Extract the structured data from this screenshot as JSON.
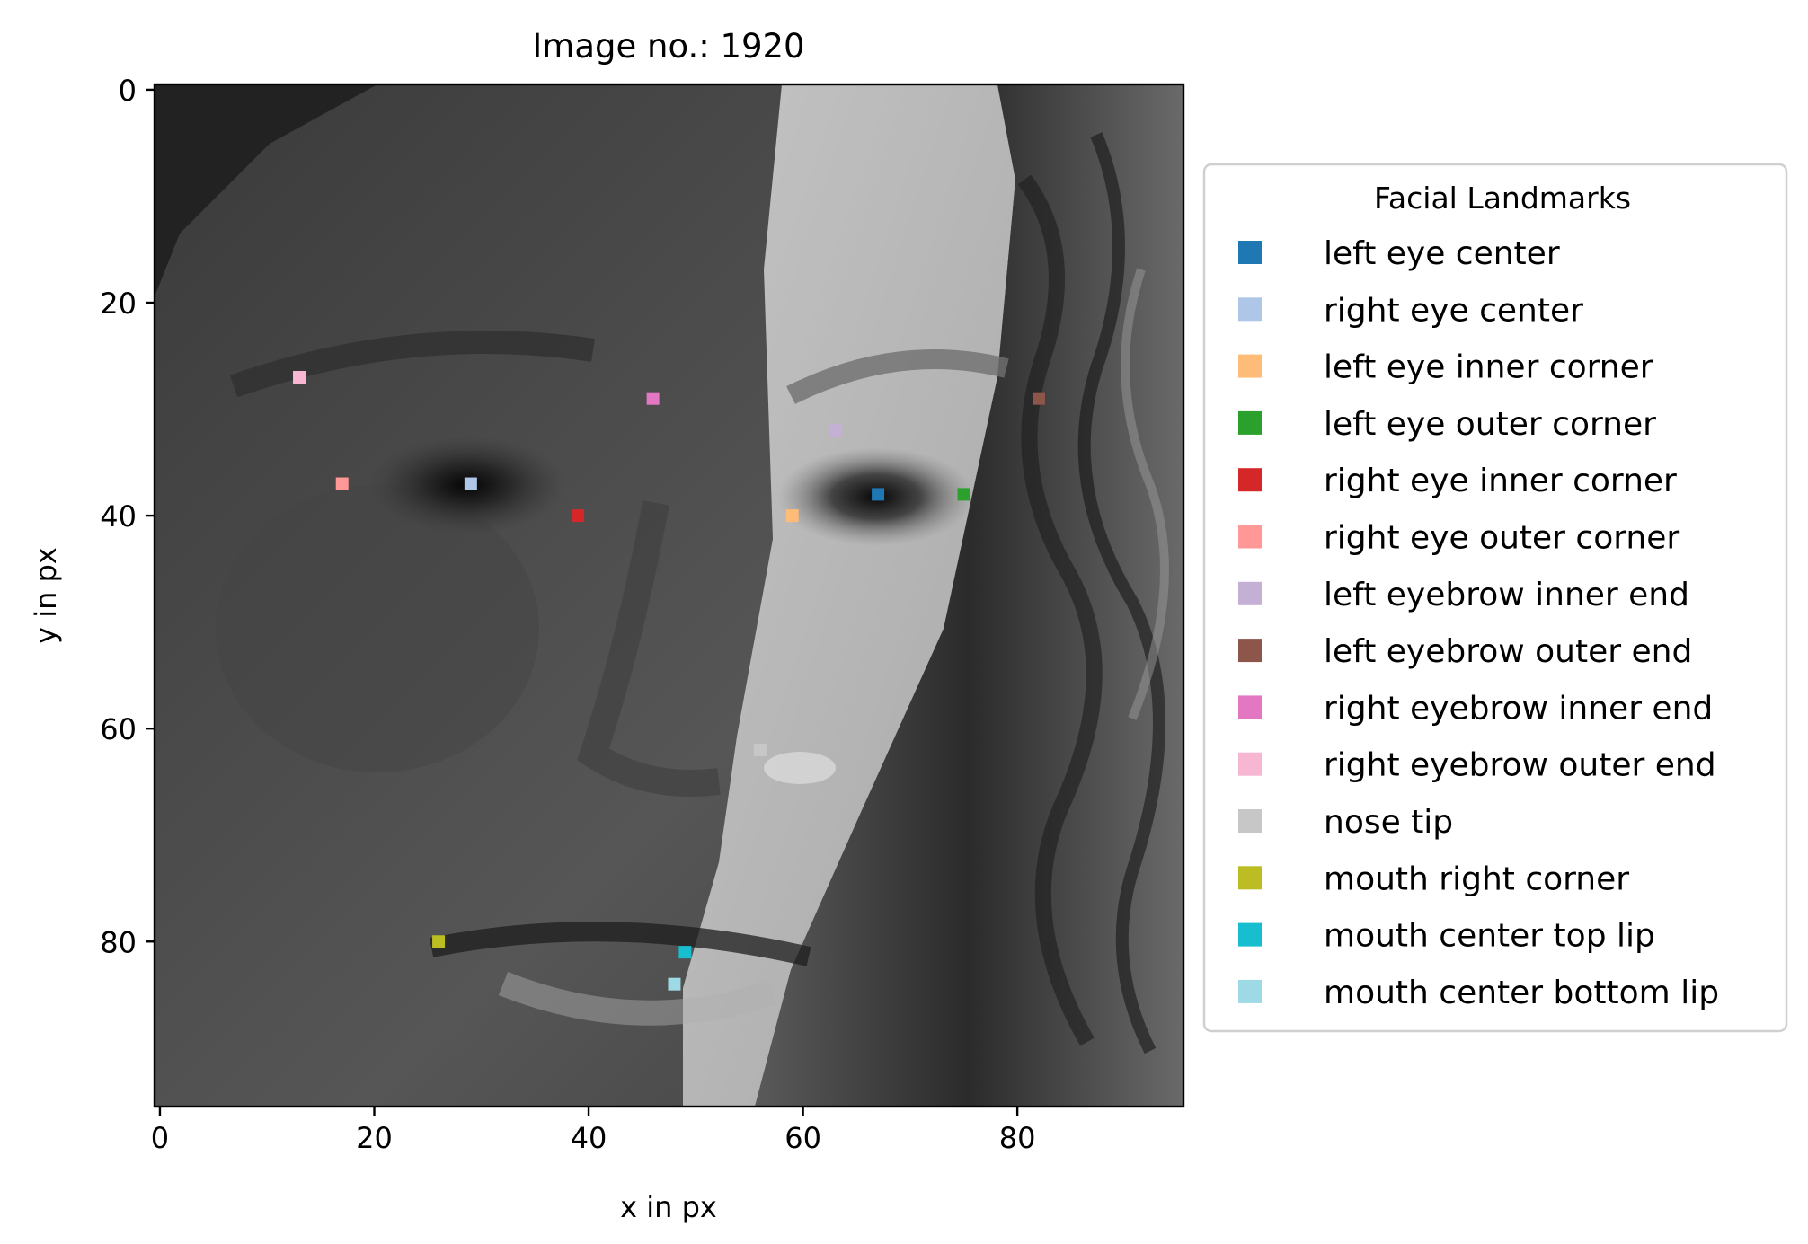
{
  "chart_data": {
    "type": "scatter",
    "title": "Image no.: 1920",
    "xlabel": "x in px",
    "ylabel": "y in px",
    "xlim": [
      -0.5,
      95.5
    ],
    "ylim": [
      95.5,
      -0.5
    ],
    "x_inverted": false,
    "y_inverted": true,
    "xticks": [
      0,
      20,
      40,
      60,
      80
    ],
    "yticks": [
      0,
      20,
      40,
      60,
      80
    ],
    "background": "96x96 grayscale face photograph",
    "grid": false,
    "legend": {
      "title": "Facial Landmarks",
      "placement": "outside-right"
    },
    "series": [
      {
        "name": "left eye center",
        "x": 67,
        "y": 38,
        "color": "#1f77b4"
      },
      {
        "name": "right eye center",
        "x": 29,
        "y": 37,
        "color": "#aec7e8"
      },
      {
        "name": "left eye inner corner",
        "x": 59,
        "y": 40,
        "color": "#ffbb78"
      },
      {
        "name": "left eye outer corner",
        "x": 75,
        "y": 38,
        "color": "#2ca02c"
      },
      {
        "name": "right eye inner corner",
        "x": 39,
        "y": 40,
        "color": "#d62728"
      },
      {
        "name": "right eye outer corner",
        "x": 17,
        "y": 37,
        "color": "#ff9896"
      },
      {
        "name": "left eyebrow inner end",
        "x": 63,
        "y": 32,
        "color": "#c5b0d5"
      },
      {
        "name": "left eyebrow outer end",
        "x": 82,
        "y": 29,
        "color": "#8c564b"
      },
      {
        "name": "right eyebrow inner end",
        "x": 46,
        "y": 29,
        "color": "#e377c2"
      },
      {
        "name": "right eyebrow outer end",
        "x": 13,
        "y": 27,
        "color": "#f7b6d2"
      },
      {
        "name": "nose tip",
        "x": 56,
        "y": 62,
        "color": "#c7c7c7"
      },
      {
        "name": "mouth right corner",
        "x": 26,
        "y": 80,
        "color": "#bcbd22"
      },
      {
        "name": "mouth center top lip",
        "x": 49,
        "y": 81,
        "color": "#17becf"
      },
      {
        "name": "mouth center bottom lip",
        "x": 48,
        "y": 84,
        "color": "#9edae5"
      }
    ]
  }
}
